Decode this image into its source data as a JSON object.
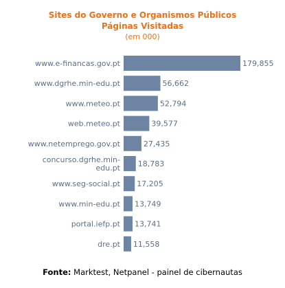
{
  "title_lines": [
    "Sites do Governo e Organismos Públicos",
    "Páginas Visitadas"
  ],
  "subtitle": "(em 000)",
  "footer": {
    "label": "Fonte:",
    "text": " Marktest, Netpanel - painel de cibernautas"
  },
  "colors": {
    "bar": "#6d85a3",
    "title": "#e8731a",
    "label": "#5f6f86"
  },
  "chart_data": {
    "type": "bar",
    "orientation": "horizontal",
    "categories": [
      [
        "www.e-financas.gov.pt"
      ],
      [
        "www.dgrhe.min-edu.pt"
      ],
      [
        "www.meteo.pt"
      ],
      [
        "web.meteo.pt"
      ],
      [
        "www.netemprego.gov.pt"
      ],
      [
        "concurso.dgrhe.min-",
        "edu.pt"
      ],
      [
        "www.seg-social.pt"
      ],
      [
        "www.min-edu.pt"
      ],
      [
        "portal.iefp.pt"
      ],
      [
        "dre.pt"
      ]
    ],
    "values": [
      179855,
      56662,
      52794,
      39577,
      27435,
      18783,
      17205,
      13749,
      13741,
      11558
    ],
    "value_labels": [
      "179,855",
      "56,662",
      "52,794",
      "39,577",
      "27,435",
      "18,783",
      "17,205",
      "13,749",
      "13,741",
      "11,558"
    ],
    "xlim": [
      0,
      179855
    ],
    "grid": false,
    "legend": false
  }
}
